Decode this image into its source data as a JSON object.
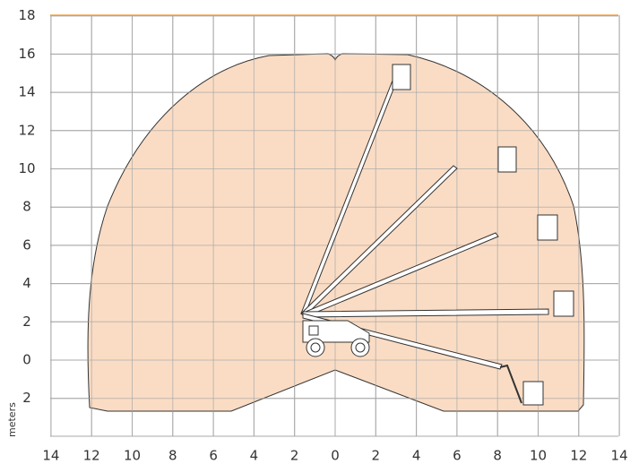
{
  "diagram": {
    "y_ticks": [
      18,
      16,
      14,
      12,
      10,
      8,
      6,
      4,
      2,
      0,
      {
        "value": -2,
        "label": "2"
      }
    ],
    "x_ticks": [
      {
        "value": -14,
        "label": "14"
      },
      {
        "value": -12,
        "label": "12"
      },
      {
        "value": -10,
        "label": "10"
      },
      {
        "value": -8,
        "label": "8"
      },
      {
        "value": -6,
        "label": "6"
      },
      {
        "value": -4,
        "label": "4"
      },
      {
        "value": -2,
        "label": "2"
      },
      0,
      2,
      4,
      6,
      8,
      10,
      12,
      14
    ],
    "unit_label": "meters"
  }
}
